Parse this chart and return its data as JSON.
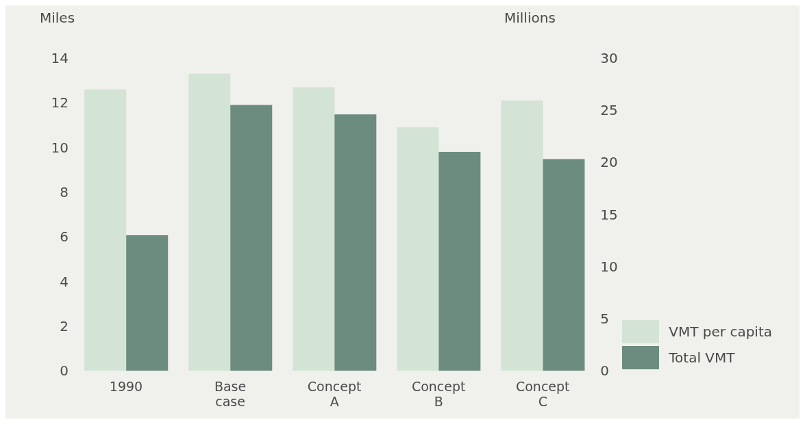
{
  "chart_data": {
    "type": "bar",
    "ylabel": "Miles",
    "y2label": "Millions",
    "categories": [
      "1990",
      "Base case",
      "Concept A",
      "Concept B",
      "Concept C"
    ],
    "series": [
      {
        "name": "VMT per capita",
        "color": "#d3e3d5",
        "values": [
          12.6,
          13.3,
          12.7,
          10.9,
          12.1
        ]
      },
      {
        "name": "Total VMT",
        "color": "#6b8c7e",
        "axis": "y2",
        "values": [
          13.0,
          25.5,
          24.6,
          21.0,
          20.3
        ]
      }
    ],
    "ylim": [
      0,
      14
    ],
    "yticks": [
      0,
      2,
      4,
      6,
      8,
      10,
      12,
      14
    ],
    "y2lim": [
      0,
      30
    ],
    "y2ticks": [
      0,
      5,
      10,
      15,
      20,
      25,
      30
    ],
    "grid": false,
    "legend": "bottom right"
  }
}
